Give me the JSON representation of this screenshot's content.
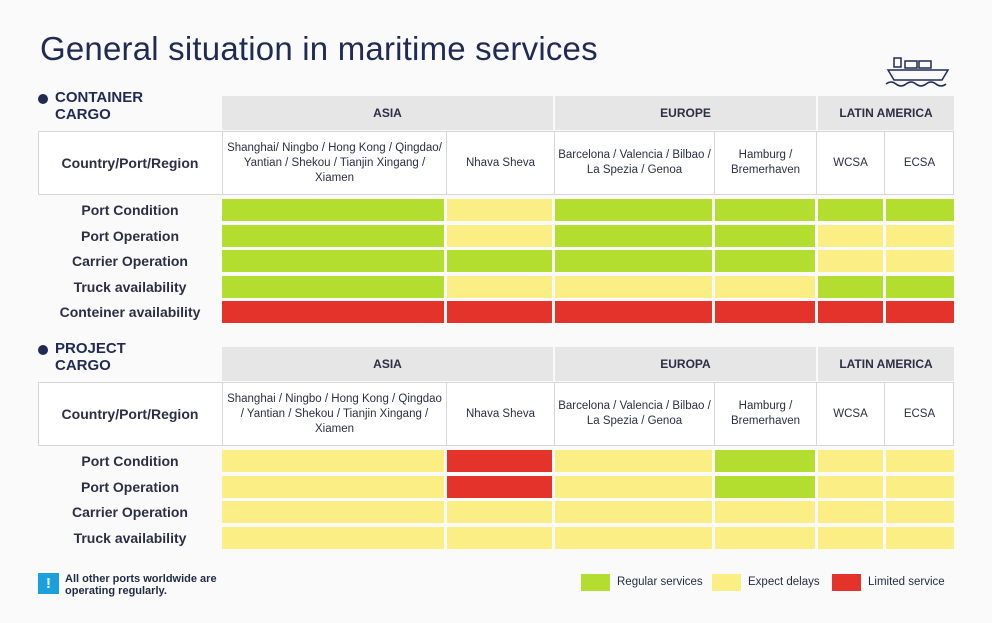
{
  "title": "General situation in maritime services",
  "colors": {
    "regular": "#b3dd2f",
    "delays": "#faee85",
    "limited": "#e4332b"
  },
  "container": {
    "title_line1": "CONTAINER",
    "title_line2": "CARGO",
    "regions": [
      "ASIA",
      "EUROPE",
      "LATIN AMERICA"
    ],
    "header_label": "Country/Port/Region",
    "ports": [
      "Shanghai/ Ningbo / Hong Kong / Qingdao/ Yantian / Shekou / Tianjin Xingang / Xiamen",
      "Nhava Sheva",
      "Barcelona / Valencia / Bilbao / La Spezia / Genoa",
      "Hamburg / Bremerhaven",
      "WCSA",
      "ECSA"
    ],
    "rows": [
      {
        "label": "Port Condition",
        "status": [
          "regular",
          "delays",
          "regular",
          "regular",
          "regular",
          "regular"
        ]
      },
      {
        "label": "Port Operation",
        "status": [
          "regular",
          "delays",
          "regular",
          "regular",
          "delays",
          "delays"
        ]
      },
      {
        "label": "Carrier Operation",
        "status": [
          "regular",
          "regular",
          "regular",
          "regular",
          "delays",
          "delays"
        ]
      },
      {
        "label": "Truck availability",
        "status": [
          "regular",
          "delays",
          "delays",
          "delays",
          "regular",
          "regular"
        ]
      },
      {
        "label": "Conteiner availability",
        "status": [
          "limited",
          "limited",
          "limited",
          "limited",
          "limited",
          "limited"
        ]
      }
    ]
  },
  "project": {
    "title_line1": "PROJECT",
    "title_line2": "CARGO",
    "regions": [
      "ASIA",
      "EUROPA",
      "LATIN AMERICA"
    ],
    "header_label": "Country/Port/Region",
    "ports": [
      "Shanghai / Ningbo / Hong Kong / Qingdao / Yantian / Shekou / Tianjin Xingang / Xiamen",
      "Nhava Sheva",
      "Barcelona / Valencia / Bilbao / La Spezia / Genoa",
      "Hamburg / Bremerhaven",
      "WCSA",
      "ECSA"
    ],
    "rows": [
      {
        "label": "Port Condition",
        "status": [
          "delays",
          "limited",
          "delays",
          "regular",
          "delays",
          "delays"
        ]
      },
      {
        "label": "Port Operation",
        "status": [
          "delays",
          "limited",
          "delays",
          "regular",
          "delays",
          "delays"
        ]
      },
      {
        "label": "Carrier Operation",
        "status": [
          "delays",
          "delays",
          "delays",
          "delays",
          "delays",
          "delays"
        ]
      },
      {
        "label": "Truck availability",
        "status": [
          "delays",
          "delays",
          "delays",
          "delays",
          "delays",
          "delays"
        ]
      }
    ]
  },
  "note": {
    "icon": "!",
    "text": "All other ports worldwide are operating regularly."
  },
  "legend": [
    {
      "key": "regular",
      "label": "Regular services"
    },
    {
      "key": "delays",
      "label": "Expect delays"
    },
    {
      "key": "limited",
      "label": "Limited service"
    }
  ]
}
